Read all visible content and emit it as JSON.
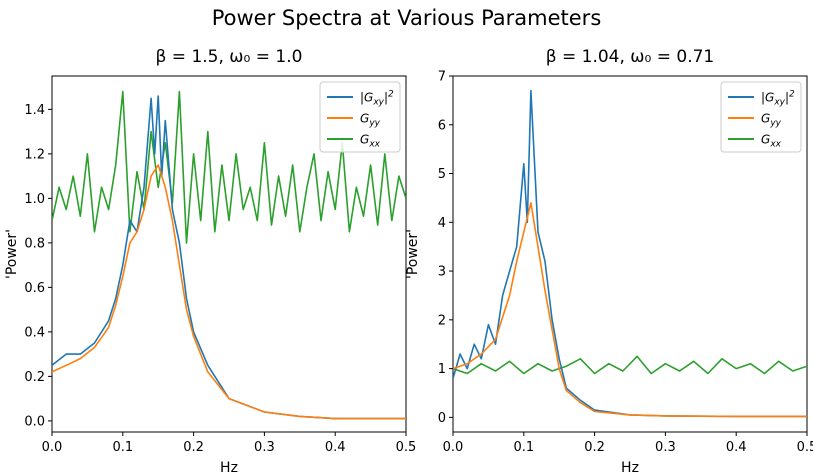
{
  "figure": {
    "title": "Power Spectra at Various Parameters"
  },
  "colors": {
    "series1": "#1f77b4",
    "series2": "#ff7f0e",
    "series3": "#2ca02c"
  },
  "chart_data": [
    {
      "type": "line",
      "title": "β = 1.5, ω₀ = 1.0",
      "xlabel": "Hz",
      "ylabel": "'Power'",
      "xlim": [
        0,
        0.5
      ],
      "ylim": [
        -0.05,
        1.55
      ],
      "xticks": [
        0.0,
        0.1,
        0.2,
        0.3,
        0.4,
        0.5
      ],
      "xtick_labels": [
        "0.0",
        "0.1",
        "0.2",
        "0.3",
        "0.4",
        "0.5"
      ],
      "yticks": [
        0.0,
        0.2,
        0.4,
        0.6,
        0.8,
        1.0,
        1.2,
        1.4
      ],
      "ytick_labels": [
        "0.0",
        "0.2",
        "0.4",
        "0.6",
        "0.8",
        "1.0",
        "1.2",
        "1.4"
      ],
      "legend_position": "upper right",
      "series": [
        {
          "name": "|Gxy|²",
          "color": "#1f77b4",
          "x": [
            0.0,
            0.02,
            0.04,
            0.06,
            0.08,
            0.09,
            0.1,
            0.11,
            0.12,
            0.13,
            0.14,
            0.145,
            0.15,
            0.155,
            0.16,
            0.17,
            0.18,
            0.19,
            0.2,
            0.22,
            0.25,
            0.3,
            0.35,
            0.4,
            0.45,
            0.5
          ],
          "values": [
            0.25,
            0.3,
            0.3,
            0.35,
            0.45,
            0.55,
            0.7,
            0.9,
            0.85,
            1.05,
            1.45,
            1.2,
            1.46,
            1.1,
            1.35,
            0.95,
            0.8,
            0.55,
            0.4,
            0.25,
            0.1,
            0.04,
            0.02,
            0.01,
            0.01,
            0.01
          ]
        },
        {
          "name": "Gyy",
          "color": "#ff7f0e",
          "x": [
            0.0,
            0.02,
            0.04,
            0.06,
            0.08,
            0.09,
            0.1,
            0.11,
            0.12,
            0.13,
            0.14,
            0.15,
            0.16,
            0.17,
            0.18,
            0.19,
            0.2,
            0.22,
            0.25,
            0.3,
            0.35,
            0.4,
            0.45,
            0.5
          ],
          "values": [
            0.22,
            0.25,
            0.28,
            0.33,
            0.42,
            0.52,
            0.65,
            0.8,
            0.85,
            0.95,
            1.1,
            1.15,
            1.05,
            0.9,
            0.7,
            0.5,
            0.38,
            0.22,
            0.1,
            0.04,
            0.02,
            0.01,
            0.01,
            0.01
          ]
        },
        {
          "name": "Gxx",
          "color": "#2ca02c",
          "x": [
            0.0,
            0.01,
            0.02,
            0.03,
            0.04,
            0.05,
            0.06,
            0.07,
            0.08,
            0.09,
            0.1,
            0.11,
            0.12,
            0.13,
            0.14,
            0.15,
            0.16,
            0.17,
            0.18,
            0.19,
            0.2,
            0.21,
            0.22,
            0.23,
            0.24,
            0.25,
            0.26,
            0.27,
            0.28,
            0.29,
            0.3,
            0.31,
            0.32,
            0.33,
            0.34,
            0.35,
            0.36,
            0.37,
            0.38,
            0.39,
            0.4,
            0.41,
            0.42,
            0.43,
            0.44,
            0.45,
            0.46,
            0.47,
            0.48,
            0.49,
            0.5
          ],
          "values": [
            0.9,
            1.05,
            0.95,
            1.1,
            0.92,
            1.2,
            0.85,
            1.05,
            0.95,
            1.15,
            1.48,
            0.85,
            1.12,
            0.95,
            1.3,
            1.05,
            1.25,
            0.98,
            1.48,
            0.8,
            1.2,
            0.9,
            1.3,
            0.85,
            1.15,
            0.9,
            1.2,
            0.95,
            1.05,
            0.9,
            1.25,
            0.88,
            1.1,
            0.92,
            1.15,
            0.85,
            1.05,
            1.2,
            0.9,
            1.12,
            0.95,
            1.25,
            0.85,
            1.05,
            0.92,
            1.15,
            0.88,
            1.2,
            0.9,
            1.1,
            1.0
          ]
        }
      ]
    },
    {
      "type": "line",
      "title": "β = 1.04, ω₀ = 0.71",
      "xlabel": "Hz",
      "ylabel": "'Power'",
      "xlim": [
        0,
        0.5
      ],
      "ylim": [
        -0.3,
        7.0
      ],
      "xticks": [
        0.0,
        0.1,
        0.2,
        0.3,
        0.4,
        0.5
      ],
      "xtick_labels": [
        "0.0",
        "0.1",
        "0.2",
        "0.3",
        "0.4",
        "0.5"
      ],
      "yticks": [
        0,
        1,
        2,
        3,
        4,
        5,
        6,
        7
      ],
      "ytick_labels": [
        "0",
        "1",
        "2",
        "3",
        "4",
        "5",
        "6",
        "7"
      ],
      "legend_position": "upper right",
      "series": [
        {
          "name": "|Gxy|²",
          "color": "#1f77b4",
          "x": [
            0.0,
            0.01,
            0.02,
            0.03,
            0.04,
            0.05,
            0.06,
            0.07,
            0.08,
            0.09,
            0.1,
            0.105,
            0.11,
            0.12,
            0.13,
            0.14,
            0.15,
            0.16,
            0.18,
            0.2,
            0.25,
            0.3,
            0.4,
            0.5
          ],
          "values": [
            0.8,
            1.3,
            1.0,
            1.5,
            1.2,
            1.9,
            1.5,
            2.5,
            3.0,
            3.5,
            5.2,
            4.0,
            6.7,
            3.8,
            3.2,
            2.0,
            1.2,
            0.6,
            0.35,
            0.15,
            0.05,
            0.03,
            0.02,
            0.02
          ]
        },
        {
          "name": "Gyy",
          "color": "#ff7f0e",
          "x": [
            0.0,
            0.02,
            0.04,
            0.06,
            0.08,
            0.09,
            0.1,
            0.11,
            0.12,
            0.13,
            0.14,
            0.15,
            0.16,
            0.18,
            0.2,
            0.25,
            0.3,
            0.4,
            0.5
          ],
          "values": [
            1.0,
            1.1,
            1.3,
            1.6,
            2.5,
            3.2,
            3.8,
            4.4,
            3.5,
            2.6,
            1.8,
            1.0,
            0.55,
            0.3,
            0.12,
            0.05,
            0.03,
            0.02,
            0.02
          ]
        },
        {
          "name": "Gxx",
          "color": "#2ca02c",
          "x": [
            0.0,
            0.02,
            0.04,
            0.06,
            0.08,
            0.1,
            0.12,
            0.14,
            0.16,
            0.18,
            0.2,
            0.22,
            0.24,
            0.26,
            0.28,
            0.3,
            0.32,
            0.34,
            0.36,
            0.38,
            0.4,
            0.42,
            0.44,
            0.46,
            0.48,
            0.5
          ],
          "values": [
            1.0,
            0.9,
            1.1,
            0.95,
            1.15,
            0.9,
            1.1,
            0.95,
            1.05,
            1.2,
            0.9,
            1.1,
            0.95,
            1.25,
            0.9,
            1.1,
            0.95,
            1.15,
            0.9,
            1.2,
            1.0,
            1.1,
            0.9,
            1.15,
            0.95,
            1.05
          ]
        }
      ]
    }
  ]
}
